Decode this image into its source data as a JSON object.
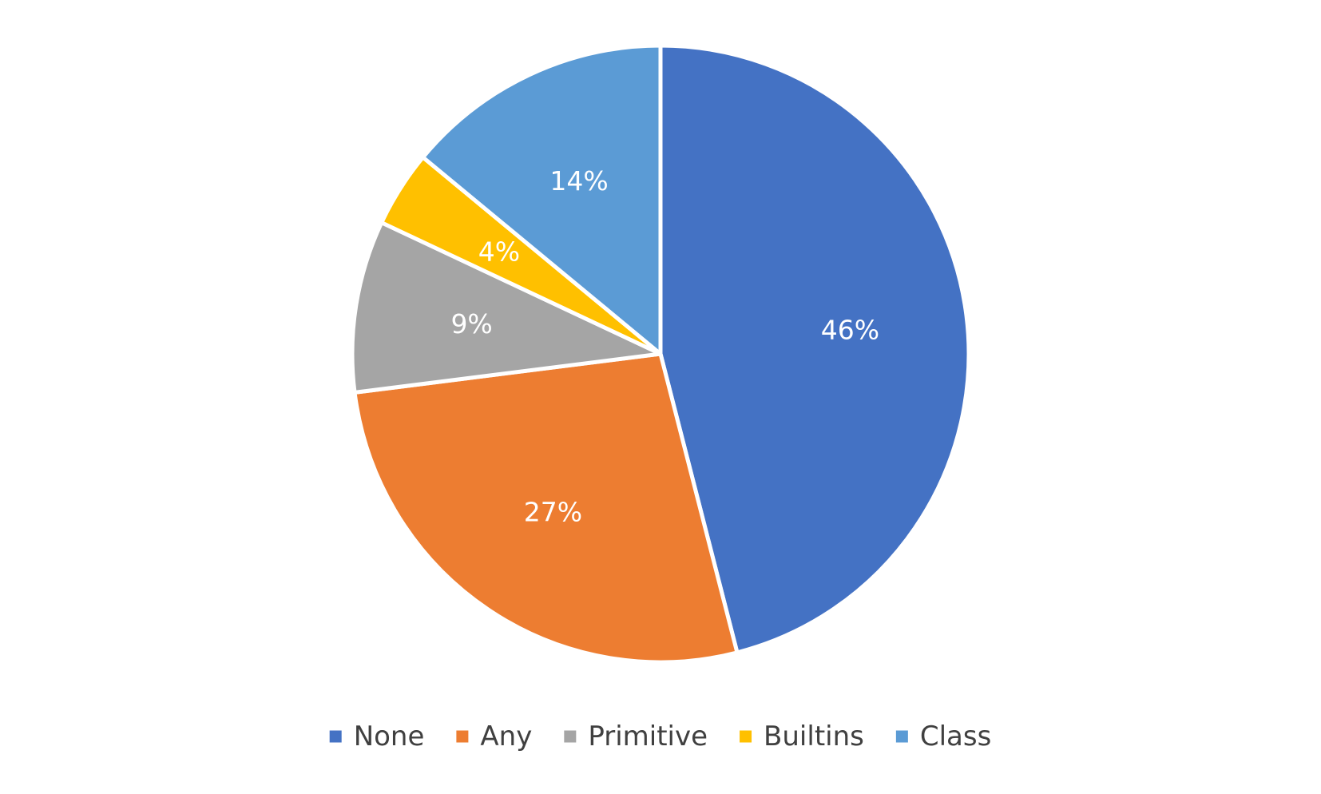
{
  "chart_data": {
    "type": "pie",
    "categories": [
      "None",
      "Any",
      "Primitive",
      "Builtins",
      "Class"
    ],
    "values": [
      46,
      27,
      9,
      4,
      14
    ],
    "labels": [
      "46%",
      "27%",
      "9%",
      "4%",
      "14%"
    ],
    "colors": [
      "#4472C4",
      "#ED7D31",
      "#A5A5A5",
      "#FFC000",
      "#5B9BD5"
    ],
    "legend_position": "bottom"
  }
}
